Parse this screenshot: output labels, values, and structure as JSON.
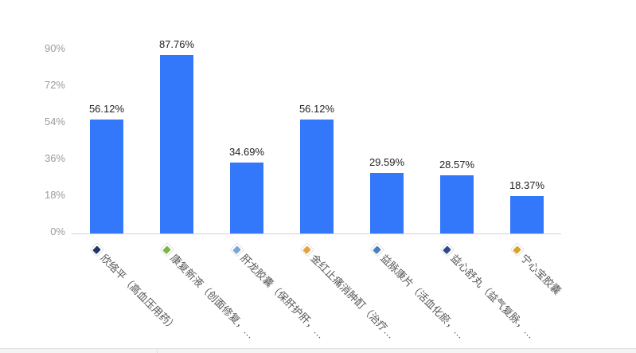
{
  "chart_data": {
    "type": "bar",
    "title": "",
    "categories": [
      "欣络平（高血压用药）",
      "康复新液（创面修复，…",
      "肝龙胶囊（保肝护肝，…",
      "金红止痛消肿酊（治疗…",
      "益脉康片（活血化瘀，…",
      "益心舒丸（益气复脉，…",
      "宁心宝胶囊"
    ],
    "values": [
      56.12,
      87.76,
      34.69,
      56.12,
      29.59,
      28.57,
      18.37
    ],
    "value_labels": [
      "56.12%",
      "87.76%",
      "34.69%",
      "56.12%",
      "29.59%",
      "28.57%",
      "18.37%"
    ],
    "category_icons": [
      {
        "name": "product-thumbnail",
        "accent_color": "#1f3864"
      },
      {
        "name": "product-thumbnail",
        "accent_color": "#7ab648"
      },
      {
        "name": "product-thumbnail",
        "accent_color": "#7aa7d8"
      },
      {
        "name": "product-thumbnail",
        "accent_color": "#e8a23c"
      },
      {
        "name": "product-thumbnail",
        "accent_color": "#4a7fc1"
      },
      {
        "name": "product-thumbnail",
        "accent_color": "#2b4a8b"
      },
      {
        "name": "product-thumbnail",
        "accent_color": "#d9a521"
      }
    ],
    "xlabel": "",
    "ylabel": "",
    "ytick_labels": [
      "0%",
      "18%",
      "36%",
      "54%",
      "72%",
      "90%"
    ],
    "ytick_values": [
      0,
      18,
      36,
      54,
      72,
      90
    ],
    "ylim": [
      0,
      90
    ],
    "grid": false,
    "legend": "none",
    "bar_color": "#3377fb",
    "value_label_color": "#222222",
    "ytick_color": "#9b9b9b",
    "axis_line_color": "#cdd2d9"
  },
  "footer": {
    "divider_positions": [
      197
    ]
  }
}
